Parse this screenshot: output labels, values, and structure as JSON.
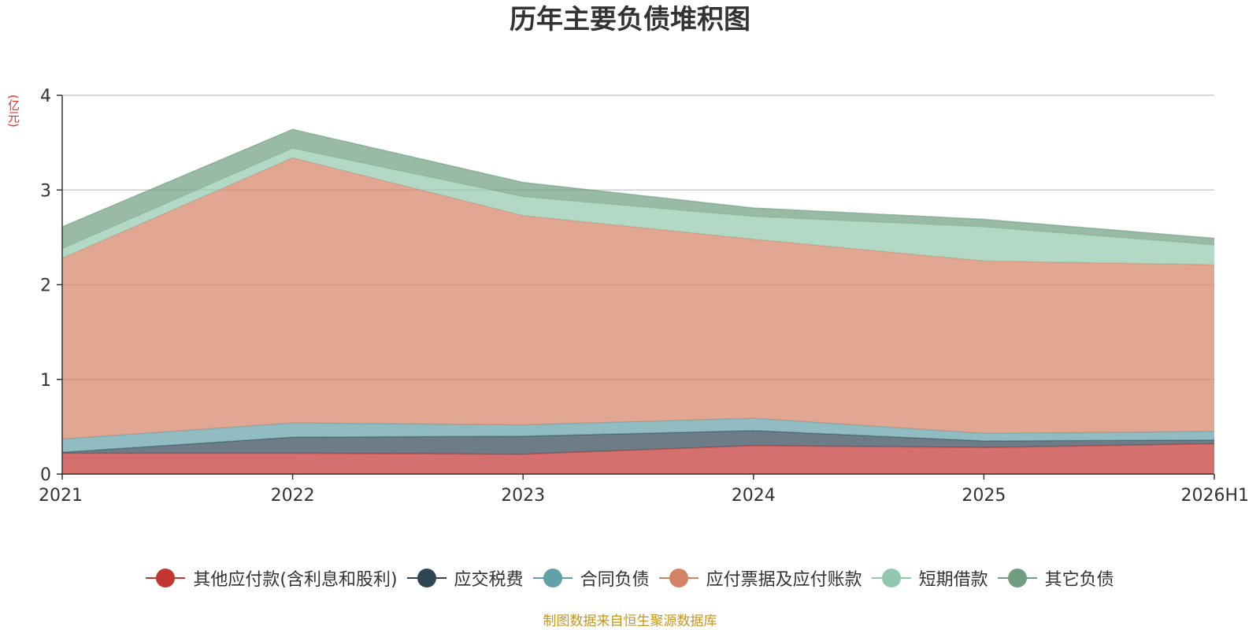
{
  "title": "历年主要负债堆积图",
  "unit": "(亿元)",
  "source": "制图数据来自恒生聚源数据库",
  "chart_data": {
    "type": "area",
    "stacked": true,
    "title": "历年主要负债堆积图",
    "ylabel": "(亿元)",
    "xlabel": "",
    "categories": [
      "2021",
      "2022",
      "2023",
      "2024",
      "2025",
      "2026H1"
    ],
    "ylim": [
      0,
      4
    ],
    "yticks": [
      0,
      1,
      2,
      3,
      4
    ],
    "grid": true,
    "legend_position": "bottom",
    "series": [
      {
        "name": "其他应付款(含利息和股利)",
        "color": "#c23531",
        "values": [
          0.22,
          0.22,
          0.21,
          0.3,
          0.28,
          0.32
        ]
      },
      {
        "name": "应交税费",
        "color": "#2f4554",
        "values": [
          0.01,
          0.17,
          0.19,
          0.16,
          0.07,
          0.04
        ]
      },
      {
        "name": "合同负债",
        "color": "#61a0a8",
        "values": [
          0.14,
          0.15,
          0.12,
          0.13,
          0.08,
          0.09
        ]
      },
      {
        "name": "应付票据及应付账款",
        "color": "#d48265",
        "values": [
          1.91,
          2.8,
          2.21,
          1.89,
          1.82,
          1.76
        ]
      },
      {
        "name": "短期借款",
        "color": "#91c7ae",
        "values": [
          0.1,
          0.1,
          0.2,
          0.24,
          0.36,
          0.21
        ]
      },
      {
        "name": "其它负债",
        "color": "#6e9e7f",
        "values": [
          0.23,
          0.2,
          0.15,
          0.09,
          0.08,
          0.07
        ]
      }
    ]
  }
}
